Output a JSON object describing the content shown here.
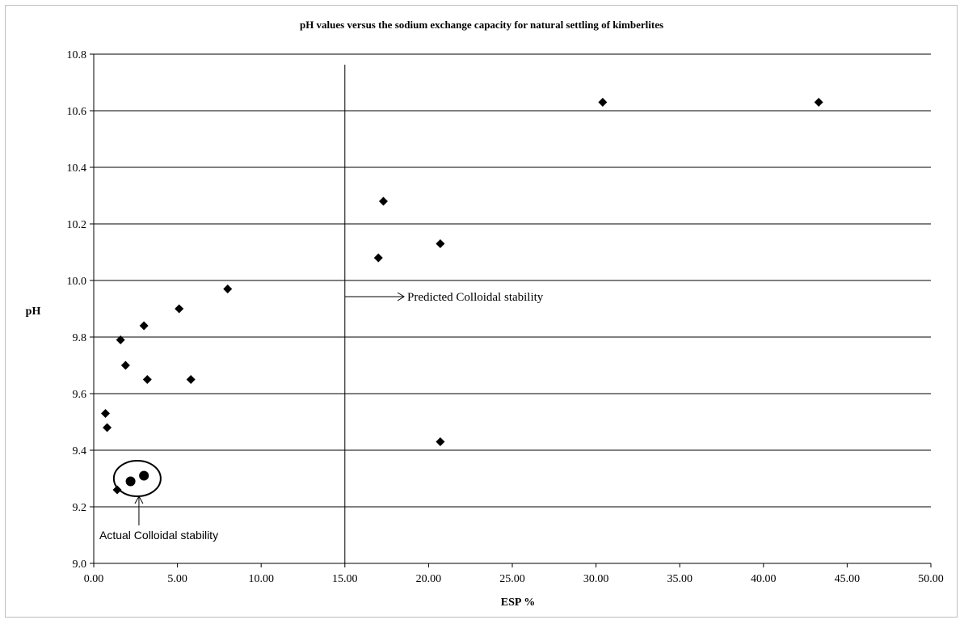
{
  "chart_data": {
    "type": "scatter",
    "title": "pH values versus the sodium exchange capacity for natural settling of kimberlites",
    "xlabel": "ESP %",
    "ylabel": "pH",
    "xlim": [
      0,
      50
    ],
    "ylim": [
      9.0,
      10.8
    ],
    "x_ticks": [
      "0.00",
      "5.00",
      "10.00",
      "15.00",
      "20.00",
      "25.00",
      "30.00",
      "35.00",
      "40.00",
      "45.00",
      "50.00"
    ],
    "y_ticks": [
      "9.0",
      "9.2",
      "9.4",
      "9.6",
      "9.8",
      "10.0",
      "10.2",
      "10.4",
      "10.6",
      "10.8"
    ],
    "grid": "horizontal",
    "series": [
      {
        "marker": "diamond",
        "points": [
          {
            "x": 0.7,
            "y": 9.53
          },
          {
            "x": 0.8,
            "y": 9.48
          },
          {
            "x": 1.4,
            "y": 9.26
          },
          {
            "x": 1.6,
            "y": 9.79
          },
          {
            "x": 1.9,
            "y": 9.7
          },
          {
            "x": 3.0,
            "y": 9.84
          },
          {
            "x": 3.2,
            "y": 9.65
          },
          {
            "x": 5.1,
            "y": 9.9
          },
          {
            "x": 5.8,
            "y": 9.65
          },
          {
            "x": 8.0,
            "y": 9.97
          },
          {
            "x": 17.0,
            "y": 10.08
          },
          {
            "x": 17.3,
            "y": 10.28
          },
          {
            "x": 20.7,
            "y": 10.13
          },
          {
            "x": 20.7,
            "y": 9.43
          },
          {
            "x": 30.4,
            "y": 10.63
          },
          {
            "x": 43.3,
            "y": 10.63
          }
        ]
      },
      {
        "marker": "circle",
        "points": [
          {
            "x": 2.2,
            "y": 9.29
          },
          {
            "x": 3.0,
            "y": 9.31
          }
        ]
      }
    ],
    "reference_line": {
      "x": 15.0
    },
    "annotations": {
      "predicted": "Predicted Colloidal stability",
      "actual": "Actual Colloidal stability"
    }
  }
}
